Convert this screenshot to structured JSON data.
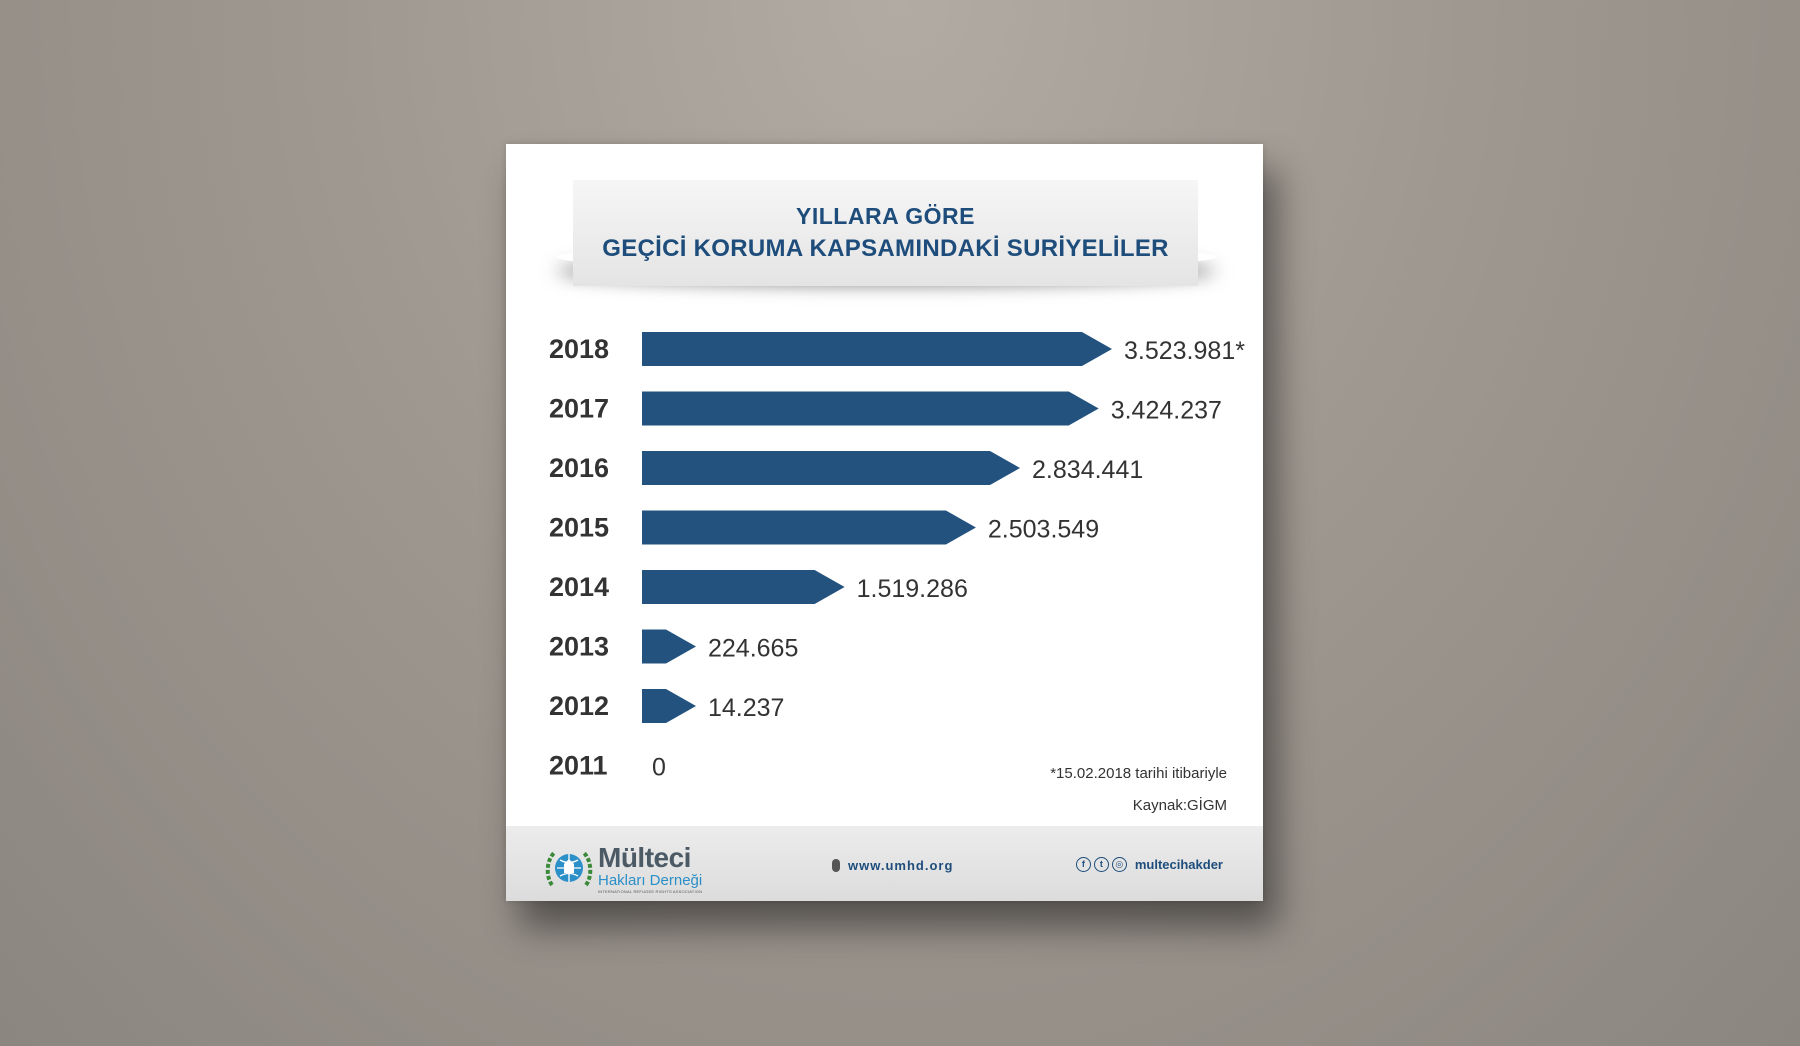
{
  "title_line1": "YILLARA GÖRE",
  "title_line2": "GEÇİCİ KORUMA KAPSAMINDAKİ SURİYELİLER",
  "footnote": "*15.02.2018 tarihi itibariyle",
  "source": "Kaynak:GİGM",
  "footer": {
    "logo_name": "Mülteci",
    "logo_sub": "Hakları Derneği",
    "logo_tagline": "INTERNATIONAL REFUGEE RIGHTS ASSOCIATION",
    "website": "www.umhd.org",
    "social_handle": "multecihakder",
    "social_icons": [
      "facebook-icon",
      "twitter-icon",
      "instagram-icon"
    ]
  },
  "colors": {
    "bar": "#23527f",
    "title": "#1e4d7c",
    "label": "#333333"
  },
  "chart_data": {
    "type": "bar",
    "orientation": "horizontal",
    "categories": [
      "2018",
      "2017",
      "2016",
      "2015",
      "2014",
      "2013",
      "2012",
      "2011"
    ],
    "values": [
      3523981,
      3424237,
      2834441,
      2503549,
      1519286,
      224665,
      14237,
      0
    ],
    "value_labels": [
      "3.523.981*",
      "3.424.237",
      "2.834.441",
      "2.503.549",
      "1.519.286",
      "224.665",
      "14.237",
      "0"
    ],
    "legend": "none",
    "grid": false
  }
}
